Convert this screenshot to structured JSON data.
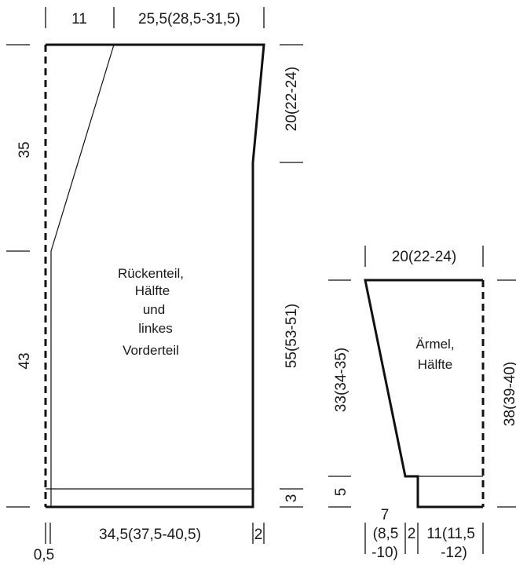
{
  "body_piece": {
    "label_lines": [
      "Rückenteil,",
      "Hälfte",
      "und",
      "linkes",
      "Vorderteil"
    ],
    "dim_top_left": "11",
    "dim_top_right": "25,5(28,5-31,5)",
    "dim_left_upper": "35",
    "dim_left_lower": "43",
    "dim_right_upper": "20(22-24)",
    "dim_right_lower": "55(53-51)",
    "dim_right_border": "3",
    "dim_bottom": "34,5(37,5-40,5)",
    "dim_bottom_right": "2",
    "dim_bottom_left": "0,5"
  },
  "sleeve": {
    "label_lines": [
      "Ärmel,",
      "Hälfte"
    ],
    "dim_top": "20(22-24)",
    "dim_left_upper": "33(34-35)",
    "dim_left_lower": "5",
    "dim_right": "38(39-40)",
    "dim_bottom_a": "7",
    "dim_bottom_b_line1": "(8,5",
    "dim_bottom_b_line2": "-10)",
    "dim_bottom_c": "2",
    "dim_bottom_d_line1": "11(11,5",
    "dim_bottom_d_line2": "-12)"
  }
}
